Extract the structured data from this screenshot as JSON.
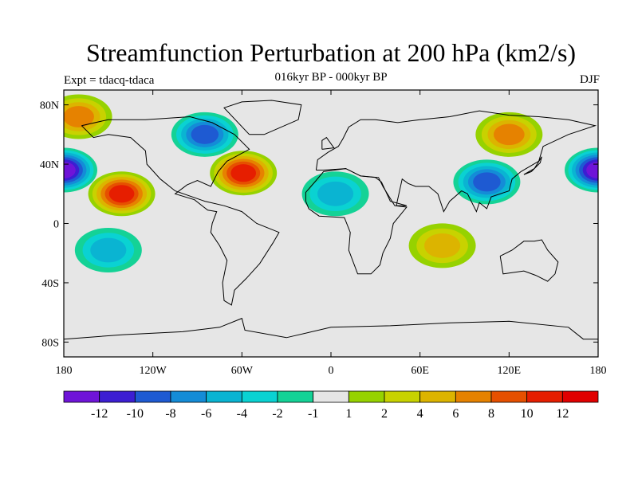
{
  "title": "Streamfunction Perturbation at 200 hPa (km2/s)",
  "subtitle": "016kyr BP - 000kyr BP",
  "left_label": "Expt = tdacq-tdaca",
  "right_label": "DJF",
  "chart_data": {
    "type": "heatmap",
    "projection": "cylindrical-equidistant",
    "xlim": [
      -180,
      180
    ],
    "ylim": [
      -90,
      90
    ],
    "x_ticks": [
      "180",
      "120W",
      "60W",
      "0",
      "60E",
      "120E",
      "180"
    ],
    "x_tick_values": [
      -180,
      -120,
      -60,
      0,
      60,
      120,
      180
    ],
    "y_ticks": [
      "80N",
      "40N",
      "0",
      "40S",
      "80S"
    ],
    "y_tick_values": [
      80,
      40,
      0,
      -40,
      -80
    ],
    "colorbar": {
      "levels": [
        "-12",
        "-10",
        "-8",
        "-6",
        "-4",
        "-2",
        "-1",
        "1",
        "2",
        "4",
        "6",
        "8",
        "10",
        "12"
      ],
      "level_values": [
        -12,
        -10,
        -8,
        -6,
        -4,
        -2,
        -1,
        1,
        2,
        4,
        6,
        8,
        10,
        12
      ],
      "colors": [
        "#6f14d8",
        "#3c1ed2",
        "#1e5ad2",
        "#148cd7",
        "#0ab4d2",
        "#0ad2d2",
        "#14d296",
        "#e6e6e6",
        "#96d200",
        "#c8d200",
        "#dcb400",
        "#e68200",
        "#e65000",
        "#e61e00",
        "#e10000"
      ]
    },
    "features": [
      {
        "name": "low-north-pacific-west",
        "lon": -180,
        "lat": 36,
        "value": -12
      },
      {
        "name": "low-north-pacific-east",
        "lon": 180,
        "lat": 36,
        "value": -12
      },
      {
        "name": "high-central-pacific",
        "lon": -141,
        "lat": 20,
        "value": 11
      },
      {
        "name": "high-west-atlantic",
        "lon": -59,
        "lat": 34,
        "value": 11
      },
      {
        "name": "low-north-america",
        "lon": -85,
        "lat": 60,
        "value": -8
      },
      {
        "name": "low-central-asia",
        "lon": 105,
        "lat": 28,
        "value": -9
      },
      {
        "name": "high-arctic-pacific",
        "lon": -170,
        "lat": 72,
        "value": 6
      },
      {
        "name": "high-siberia",
        "lon": 120,
        "lat": 60,
        "value": 6
      },
      {
        "name": "high-southern-indian",
        "lon": 75,
        "lat": -15,
        "value": 5
      },
      {
        "name": "low-south-pacific",
        "lon": -150,
        "lat": -18,
        "value": -5
      },
      {
        "name": "low-atlantic",
        "lon": 3,
        "lat": 20,
        "value": -4
      }
    ]
  }
}
